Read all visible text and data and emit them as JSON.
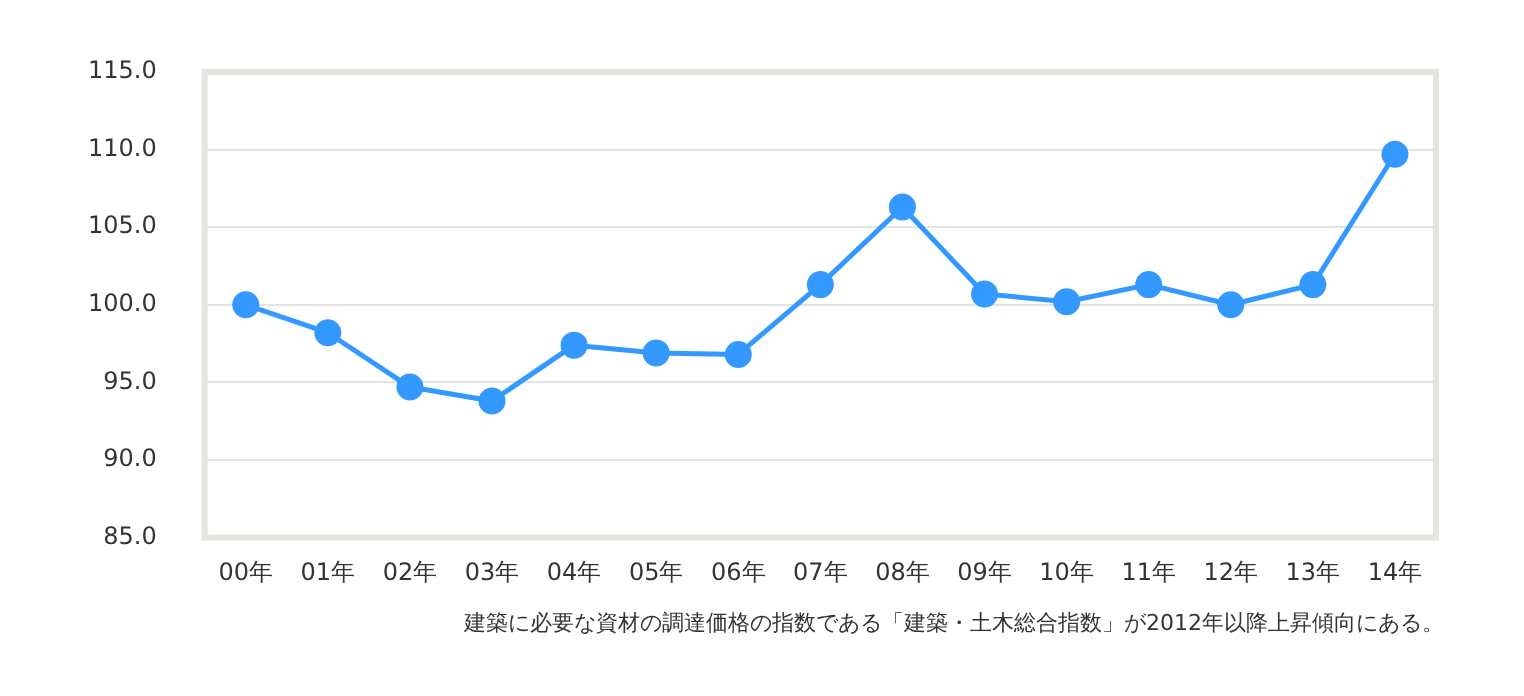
{
  "chart_data": {
    "type": "line",
    "categories": [
      "00年",
      "01年",
      "02年",
      "03年",
      "04年",
      "05年",
      "06年",
      "07年",
      "08年",
      "09年",
      "10年",
      "11年",
      "12年",
      "13年",
      "14年"
    ],
    "series": [
      {
        "color": "#3399ff",
        "values": [
          100.0,
          98.2,
          94.7,
          93.8,
          97.4,
          96.9,
          96.8,
          101.3,
          106.3,
          100.7,
          100.2,
          101.3,
          100.0,
          101.3,
          109.7
        ]
      }
    ],
    "ylim": [
      85,
      115
    ],
    "yticks": [
      {
        "value": 85,
        "label": "85.0"
      },
      {
        "value": 90,
        "label": "90.0"
      },
      {
        "value": 95,
        "label": "95.0"
      },
      {
        "value": 100,
        "label": "100.0"
      },
      {
        "value": 105,
        "label": "105.0"
      },
      {
        "value": 110,
        "label": "110.0"
      },
      {
        "value": 115,
        "label": "115.0"
      }
    ],
    "grid": "y",
    "marker": "circle",
    "line_style": "solid",
    "legend": false,
    "annotations": [
      "建築に必要な資材の調達価格の指数である「建築・土木総合指数」が2012年以降上昇傾向にある。"
    ]
  }
}
